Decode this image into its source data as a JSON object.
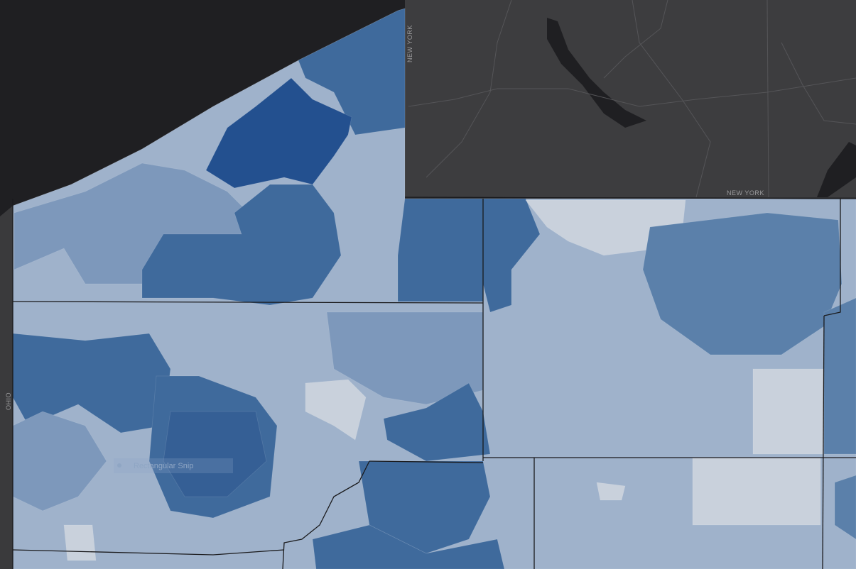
{
  "map": {
    "labels": {
      "new_york_vertical": "NEW YORK",
      "new_york_horizontal": "NEW YORK",
      "ohio": "OHIO"
    }
  },
  "tooltip": {
    "text": "Rectangular Snip"
  }
}
